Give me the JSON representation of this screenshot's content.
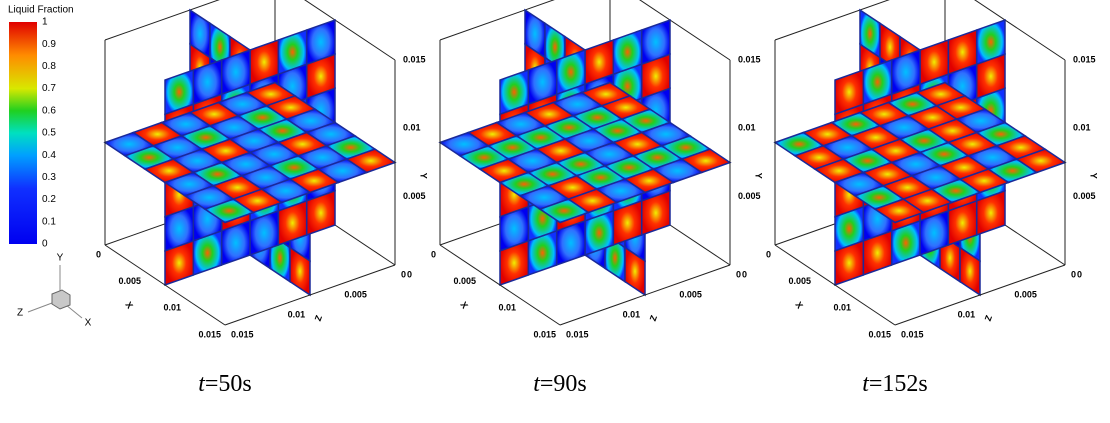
{
  "legend": {
    "title": "Liquid Fraction",
    "labels": [
      "1",
      "0.9",
      "0.8",
      "0.7",
      "0.6",
      "0.5",
      "0.4",
      "0.3",
      "0.2",
      "0.1",
      "0"
    ]
  },
  "triad": {
    "y": "Y",
    "z": "Z",
    "x": "X"
  },
  "panels": [
    {
      "caption_var": "t",
      "caption_rest": "=50s",
      "x_label": "X",
      "y_label": "Y",
      "z_label": "Z",
      "x_ticks": [
        "0",
        "0.005",
        "0.01",
        "0.015"
      ],
      "y_ticks": [
        "0",
        "0.005",
        "0.01",
        "0.015"
      ],
      "z_ticks": [
        "0",
        "0.005",
        "0.01",
        "0.015"
      ]
    },
    {
      "caption_var": "t",
      "caption_rest": "=90s",
      "x_label": "X",
      "y_label": "Y",
      "z_label": "Z",
      "x_ticks": [
        "0",
        "0.005",
        "0.01",
        "0.015"
      ],
      "y_ticks": [
        "0",
        "0.005",
        "0.01",
        "0.015"
      ],
      "z_ticks": [
        "0",
        "0.005",
        "0.01",
        "0.015"
      ]
    },
    {
      "caption_var": "t",
      "caption_rest": "=152s",
      "x_label": "X",
      "y_label": "Y",
      "z_label": "Z",
      "x_ticks": [
        "0",
        "0.005",
        "0.01",
        "0.015"
      ],
      "y_ticks": [
        "0",
        "0.005",
        "0.01",
        "0.015"
      ],
      "z_ticks": [
        "0",
        "0.005",
        "0.01",
        "0.015"
      ]
    }
  ]
}
